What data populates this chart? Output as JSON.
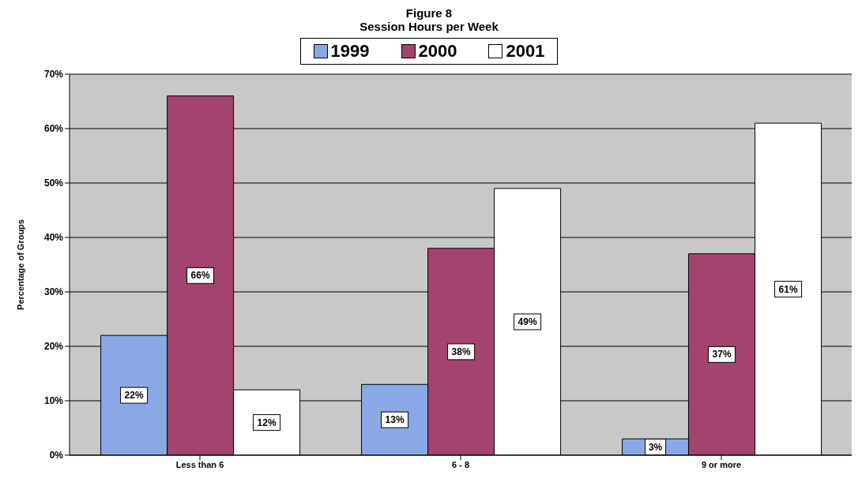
{
  "chart_data": {
    "type": "bar",
    "title": "Figure 8",
    "subtitle": "Session Hours per Week",
    "ylabel": "Percentage of Groups",
    "categories": [
      "Less than 6",
      "6 - 8",
      "9 or more"
    ],
    "series": [
      {
        "name": "1999",
        "color": "#8aa8e6",
        "values": [
          22,
          13,
          3
        ],
        "value_labels": [
          "22%",
          "13%",
          "3%"
        ]
      },
      {
        "name": "2000",
        "color": "#a3446f",
        "values": [
          66,
          38,
          37
        ],
        "value_labels": [
          "66%",
          "38%",
          "37%"
        ]
      },
      {
        "name": "2001",
        "color": "#ffffff",
        "values": [
          12,
          49,
          61
        ],
        "value_labels": [
          "12%",
          "49%",
          "61%"
        ]
      }
    ],
    "ylim": [
      0,
      70
    ],
    "yticks": [
      {
        "value": 0,
        "label": "0%"
      },
      {
        "value": 10,
        "label": "10%"
      },
      {
        "value": 20,
        "label": "20%"
      },
      {
        "value": 30,
        "label": "30%"
      },
      {
        "value": 40,
        "label": "40%"
      },
      {
        "value": 50,
        "label": "50%"
      },
      {
        "value": 60,
        "label": "60%"
      },
      {
        "value": 70,
        "label": "70%"
      }
    ],
    "grid": "y",
    "legend": "top"
  }
}
